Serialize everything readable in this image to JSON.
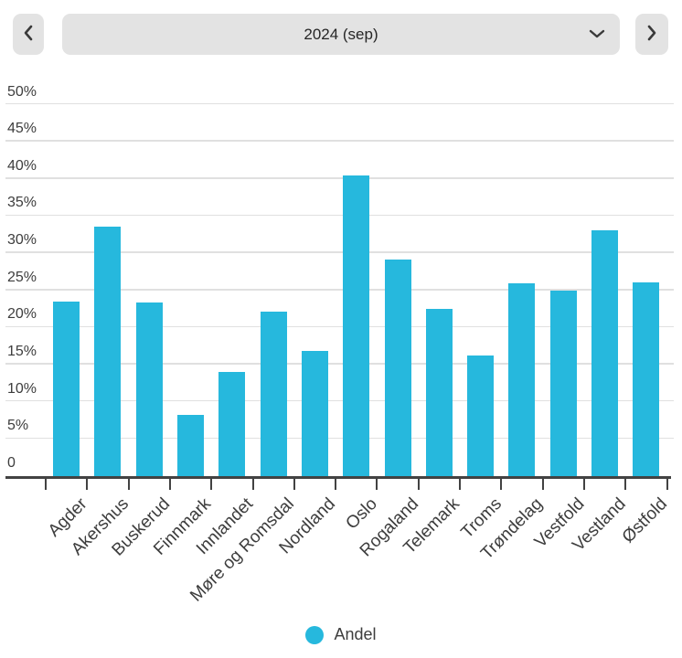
{
  "header": {
    "period_label": "2024 (sep)",
    "prev_button_icon": "chevron-left-icon",
    "next_button_icon": "chevron-right-icon",
    "dropdown_icon": "chevron-down-icon"
  },
  "colors": {
    "bar": "#26b8dd",
    "grid": "#e0e0e0",
    "axis": "#424242",
    "label_text": "#3d3d3d",
    "button_bg": "#e3e3e3"
  },
  "chart_data": {
    "type": "bar",
    "title": "",
    "xlabel": "",
    "ylabel": "",
    "categories": [
      "Agder",
      "Akershus",
      "Buskerud",
      "Finnmark",
      "Innlandet",
      "Møre og Romsdal",
      "Nordland",
      "Oslo",
      "Rogaland",
      "Telemark",
      "Troms",
      "Trøndelag",
      "Vestfold",
      "Vestland",
      "Østfold"
    ],
    "series": [
      {
        "name": "Andel",
        "values": [
          23.4,
          33.4,
          23.3,
          8.1,
          13.9,
          22.0,
          16.7,
          40.4,
          29.0,
          22.4,
          16.1,
          25.8,
          24.9,
          33.0,
          25.9
        ]
      }
    ],
    "ylim": [
      0,
      50
    ],
    "yticks": [
      {
        "value": 0,
        "label": "0"
      },
      {
        "value": 5,
        "label": "5%"
      },
      {
        "value": 10,
        "label": "10%"
      },
      {
        "value": 15,
        "label": "15%"
      },
      {
        "value": 20,
        "label": "20%"
      },
      {
        "value": 25,
        "label": "25%"
      },
      {
        "value": 30,
        "label": "30%"
      },
      {
        "value": 35,
        "label": "35%"
      },
      {
        "value": 40,
        "label": "40%"
      },
      {
        "value": 45,
        "label": "45%"
      },
      {
        "value": 50,
        "label": "50%"
      }
    ],
    "grid": true,
    "legend": {
      "position": "bottom",
      "entries": [
        "Andel"
      ]
    }
  }
}
